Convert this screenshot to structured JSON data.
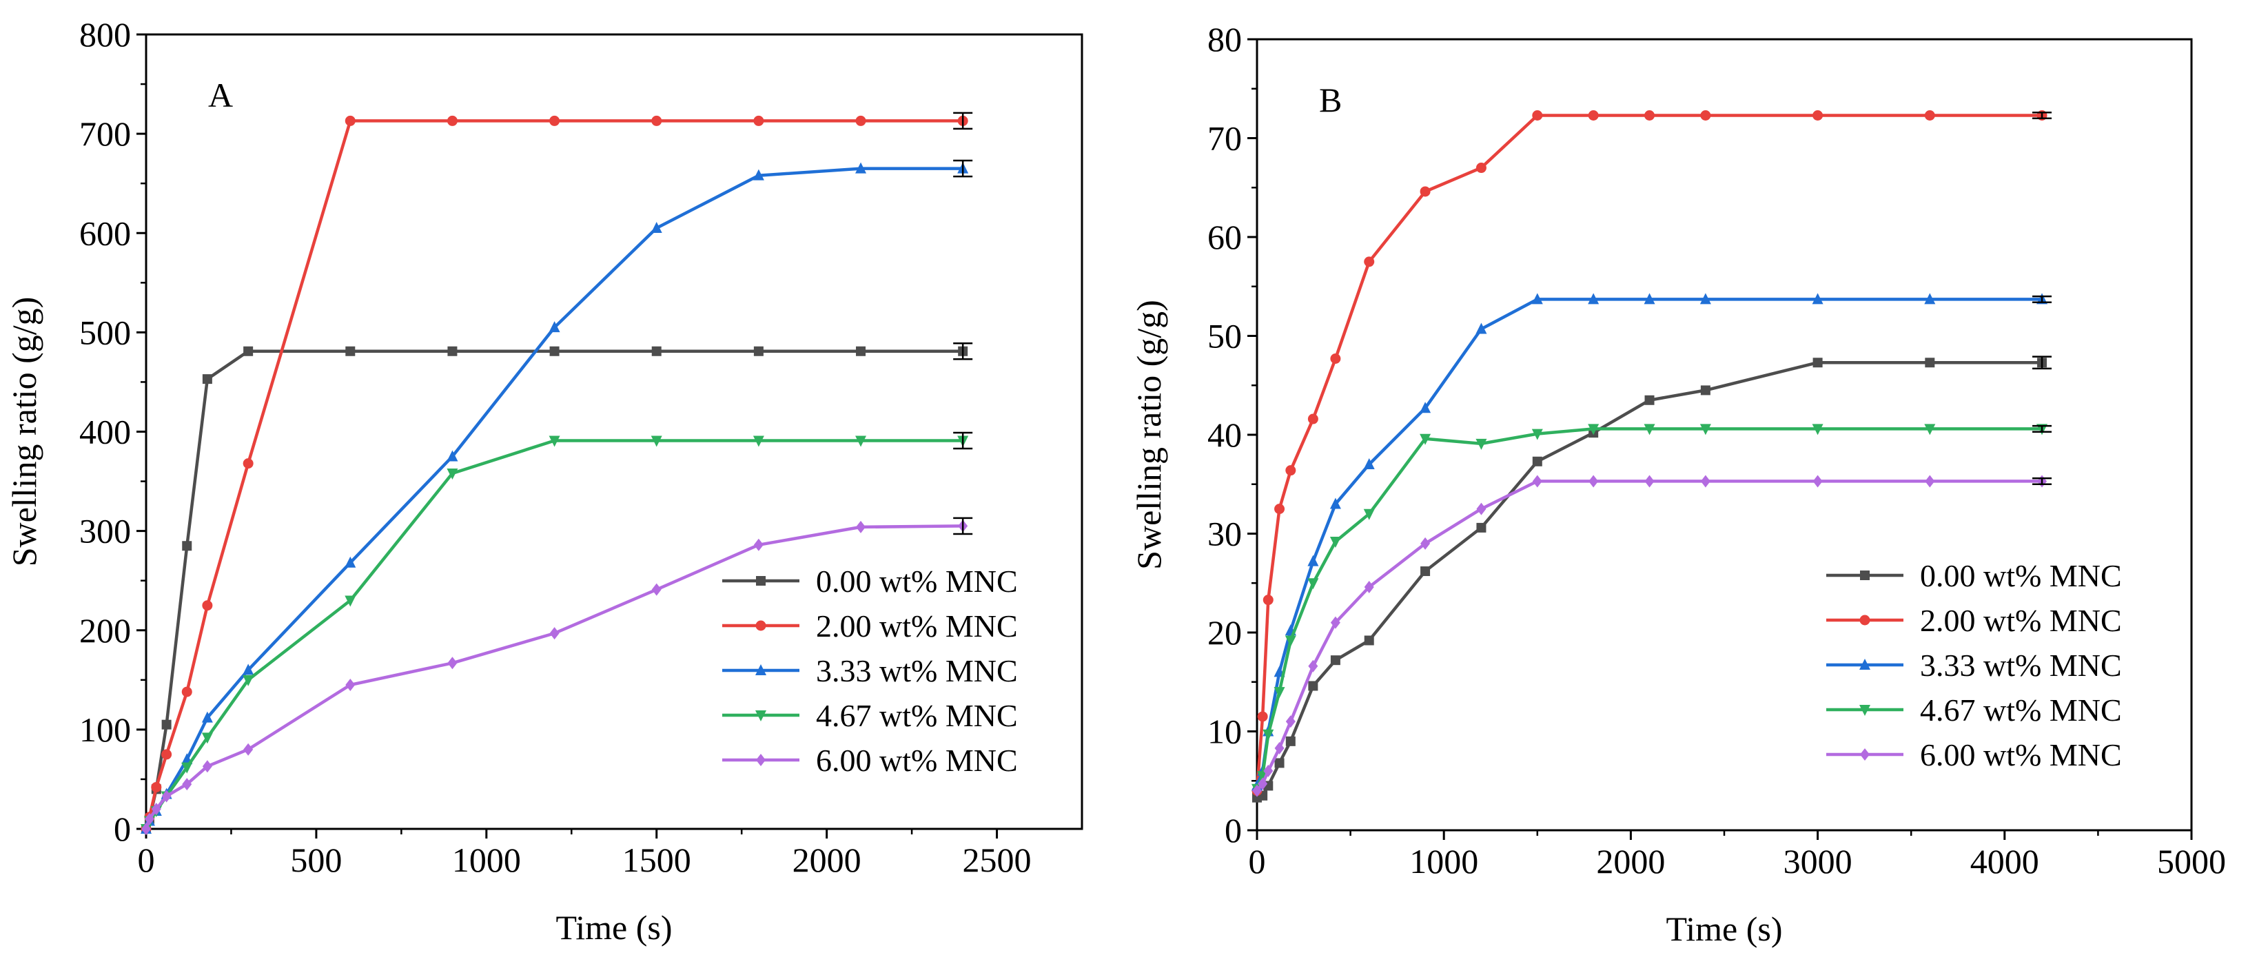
{
  "figure_title": "",
  "chart_data": [
    {
      "type": "line",
      "panel_label": "A",
      "title": "",
      "xlabel": "Time (s)",
      "ylabel": "Swelling ratio (g/g)",
      "xlim": [
        0,
        2750
      ],
      "ylim": [
        0,
        800
      ],
      "xticks": [
        0,
        500,
        1000,
        1500,
        2000,
        2500
      ],
      "yticks": [
        0,
        100,
        200,
        300,
        400,
        500,
        600,
        700,
        800
      ],
      "xtick_labels": [
        "0",
        "500",
        "1000",
        "1500",
        "2000",
        "2500"
      ],
      "ytick_labels": [
        "0",
        "100",
        "200",
        "300",
        "400",
        "500",
        "600",
        "700",
        "800"
      ],
      "grid": false,
      "legend_position": "lower-right",
      "series": [
        {
          "name": "0.00 wt% MNC",
          "color": "#4d4d4d",
          "marker": "square",
          "x": [
            0,
            10,
            30,
            60,
            120,
            180,
            300,
            600,
            900,
            1200,
            1500,
            1800,
            2100,
            2400
          ],
          "y": [
            0,
            10,
            40,
            105,
            285,
            453,
            481,
            481,
            481,
            481,
            481,
            481,
            481,
            481
          ],
          "final_error": 8
        },
        {
          "name": "2.00 wt% MNC",
          "color": "#e8413c",
          "marker": "circle",
          "x": [
            0,
            10,
            30,
            60,
            120,
            180,
            300,
            600,
            900,
            1200,
            1500,
            1800,
            2100,
            2400
          ],
          "y": [
            0,
            12,
            42,
            75,
            138,
            225,
            368,
            713,
            713,
            713,
            713,
            713,
            713,
            713
          ],
          "final_error": 8
        },
        {
          "name": "3.33 wt% MNC",
          "color": "#1f6fd6",
          "marker": "triangle-up",
          "x": [
            0,
            10,
            30,
            60,
            120,
            180,
            300,
            600,
            900,
            1200,
            1500,
            1800,
            2100,
            2400
          ],
          "y": [
            0,
            8,
            18,
            35,
            70,
            112,
            160,
            268,
            375,
            505,
            605,
            658,
            665,
            665
          ],
          "final_error": 8
        },
        {
          "name": "4.67 wt% MNC",
          "color": "#2fb05e",
          "marker": "triangle-down",
          "x": [
            0,
            10,
            30,
            60,
            120,
            180,
            300,
            600,
            900,
            1200,
            1500,
            1800,
            2100,
            2400
          ],
          "y": [
            0,
            8,
            18,
            33,
            62,
            92,
            150,
            230,
            358,
            391,
            391,
            391,
            391,
            391
          ],
          "final_error": 8
        },
        {
          "name": "6.00 wt% MNC",
          "color": "#b36be0",
          "marker": "diamond",
          "x": [
            0,
            10,
            30,
            60,
            120,
            180,
            300,
            600,
            900,
            1200,
            1500,
            1800,
            2100,
            2400
          ],
          "y": [
            0,
            10,
            20,
            33,
            45,
            63,
            80,
            145,
            167,
            197,
            241,
            286,
            304,
            305
          ],
          "final_error": 8
        }
      ]
    },
    {
      "type": "line",
      "panel_label": "B",
      "title": "",
      "xlabel": "Time (s)",
      "ylabel": "Swelling ratio (g/g)",
      "xlim": [
        0,
        5000
      ],
      "ylim": [
        0,
        80
      ],
      "xticks": [
        0,
        1000,
        2000,
        3000,
        4000,
        5000
      ],
      "yticks": [
        0,
        10,
        20,
        30,
        40,
        50,
        60,
        70,
        80
      ],
      "xtick_labels": [
        "0",
        "1000",
        "2000",
        "3000",
        "4000",
        "5000"
      ],
      "ytick_labels": [
        "0",
        "10",
        "20",
        "30",
        "40",
        "50",
        "60",
        "70",
        "80"
      ],
      "grid": false,
      "legend_position": "lower-right",
      "series": [
        {
          "name": "0.00 wt% MNC",
          "color": "#4d4d4d",
          "marker": "square",
          "x": [
            0,
            30,
            60,
            120,
            180,
            300,
            420,
            600,
            900,
            1200,
            1500,
            1800,
            2100,
            2400,
            3000,
            3600,
            4200
          ],
          "y": [
            3.3,
            3.5,
            4.5,
            6.8,
            9,
            14.6,
            17.2,
            19.2,
            26.2,
            30.6,
            37.3,
            40.2,
            43.5,
            44.5,
            47.3,
            47.3,
            47.3
          ],
          "final_error": 0.6
        },
        {
          "name": "2.00 wt% MNC",
          "color": "#e8413c",
          "marker": "circle",
          "x": [
            0,
            30,
            60,
            120,
            180,
            300,
            420,
            600,
            900,
            1200,
            1500,
            1800,
            2100,
            2400,
            3000,
            3600,
            4200
          ],
          "y": [
            4,
            11.5,
            23.3,
            32.5,
            36.4,
            41.6,
            47.7,
            57.5,
            64.6,
            67,
            72.3,
            72.3,
            72.3,
            72.3,
            72.3,
            72.3,
            72.3
          ],
          "final_error": 0.3
        },
        {
          "name": "3.33 wt% MNC",
          "color": "#1f6fd6",
          "marker": "triangle-up",
          "x": [
            0,
            30,
            60,
            120,
            180,
            300,
            420,
            600,
            900,
            1200,
            1500,
            1800,
            2100,
            2400,
            3000,
            3600,
            4200
          ],
          "y": [
            4.5,
            6,
            10,
            16,
            20.2,
            27.2,
            33,
            37,
            42.7,
            50.7,
            53.7,
            53.7,
            53.7,
            53.7,
            53.7,
            53.7,
            53.7
          ],
          "final_error": 0.3
        },
        {
          "name": "4.67 wt% MNC",
          "color": "#2fb05e",
          "marker": "triangle-down",
          "x": [
            0,
            30,
            60,
            120,
            180,
            300,
            420,
            600,
            900,
            1200,
            1500,
            1800,
            2100,
            2400,
            3000,
            3600,
            4200
          ],
          "y": [
            4.2,
            5.5,
            9.7,
            14,
            19.2,
            25,
            29.2,
            32,
            39.6,
            39.1,
            40.1,
            40.6,
            40.6,
            40.6,
            40.6,
            40.6,
            40.6
          ],
          "final_error": 0.3
        },
        {
          "name": "6.00 wt% MNC",
          "color": "#b36be0",
          "marker": "diamond",
          "x": [
            0,
            30,
            60,
            120,
            180,
            300,
            420,
            600,
            900,
            1200,
            1500,
            1800,
            2100,
            2400,
            3000,
            3600,
            4200
          ],
          "y": [
            4,
            4.7,
            6,
            8.3,
            11,
            16.6,
            21,
            24.6,
            29,
            32.5,
            35.3,
            35.3,
            35.3,
            35.3,
            35.3,
            35.3,
            35.3
          ],
          "final_error": 0.3
        }
      ]
    }
  ]
}
